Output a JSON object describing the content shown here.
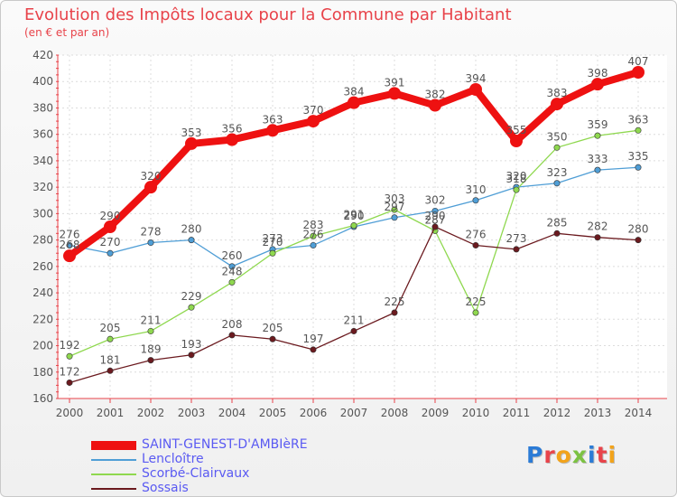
{
  "header": {
    "title": "Evolution des Impôts locaux pour la Commune par Habitant",
    "subtitle": "(en € et par an)"
  },
  "logo": {
    "text": "Proxiti",
    "letters": [
      {
        "ch": "P",
        "color": "#2b7bd6"
      },
      {
        "ch": "r",
        "color": "#e8434a"
      },
      {
        "ch": "o",
        "color": "#f2a31b"
      },
      {
        "ch": "x",
        "color": "#7cc242"
      },
      {
        "ch": "i",
        "color": "#2b7bd6"
      },
      {
        "ch": "t",
        "color": "#e8434a"
      },
      {
        "ch": "i",
        "color": "#f2a31b"
      }
    ]
  },
  "chart_data": {
    "type": "line",
    "x": [
      2000,
      2001,
      2002,
      2003,
      2004,
      2005,
      2006,
      2007,
      2008,
      2009,
      2010,
      2011,
      2012,
      2013,
      2014
    ],
    "ylim": [
      160,
      420
    ],
    "yticks": [
      160,
      180,
      200,
      220,
      240,
      260,
      280,
      300,
      320,
      340,
      360,
      380,
      400,
      420
    ],
    "grid": true,
    "legend_position": "bottom",
    "series": [
      {
        "name": "SAINT-GENEST-D'AMBIèRE",
        "color": "#ee1111",
        "label_color": "#555555",
        "emphasis": true,
        "values": [
          268,
          290,
          320,
          353,
          356,
          363,
          370,
          384,
          391,
          382,
          394,
          355,
          383,
          398,
          407
        ]
      },
      {
        "name": "Lencloître",
        "color": "#4f9ed6",
        "label_color": "#555555",
        "values": [
          276,
          270,
          278,
          280,
          260,
          273,
          276,
          290,
          297,
          302,
          310,
          320,
          323,
          333,
          335
        ]
      },
      {
        "name": "Scorbé-Clairvaux",
        "color": "#8fd84f",
        "label_color": "#555555",
        "values": [
          192,
          205,
          211,
          229,
          248,
          270,
          283,
          291,
          303,
          287,
          225,
          318,
          350,
          359,
          363
        ]
      },
      {
        "name": "Sossais",
        "color": "#6b1a1f",
        "label_color": "#555555",
        "values": [
          172,
          181,
          189,
          193,
          208,
          205,
          197,
          211,
          225,
          290,
          276,
          273,
          285,
          282,
          280
        ]
      }
    ]
  }
}
